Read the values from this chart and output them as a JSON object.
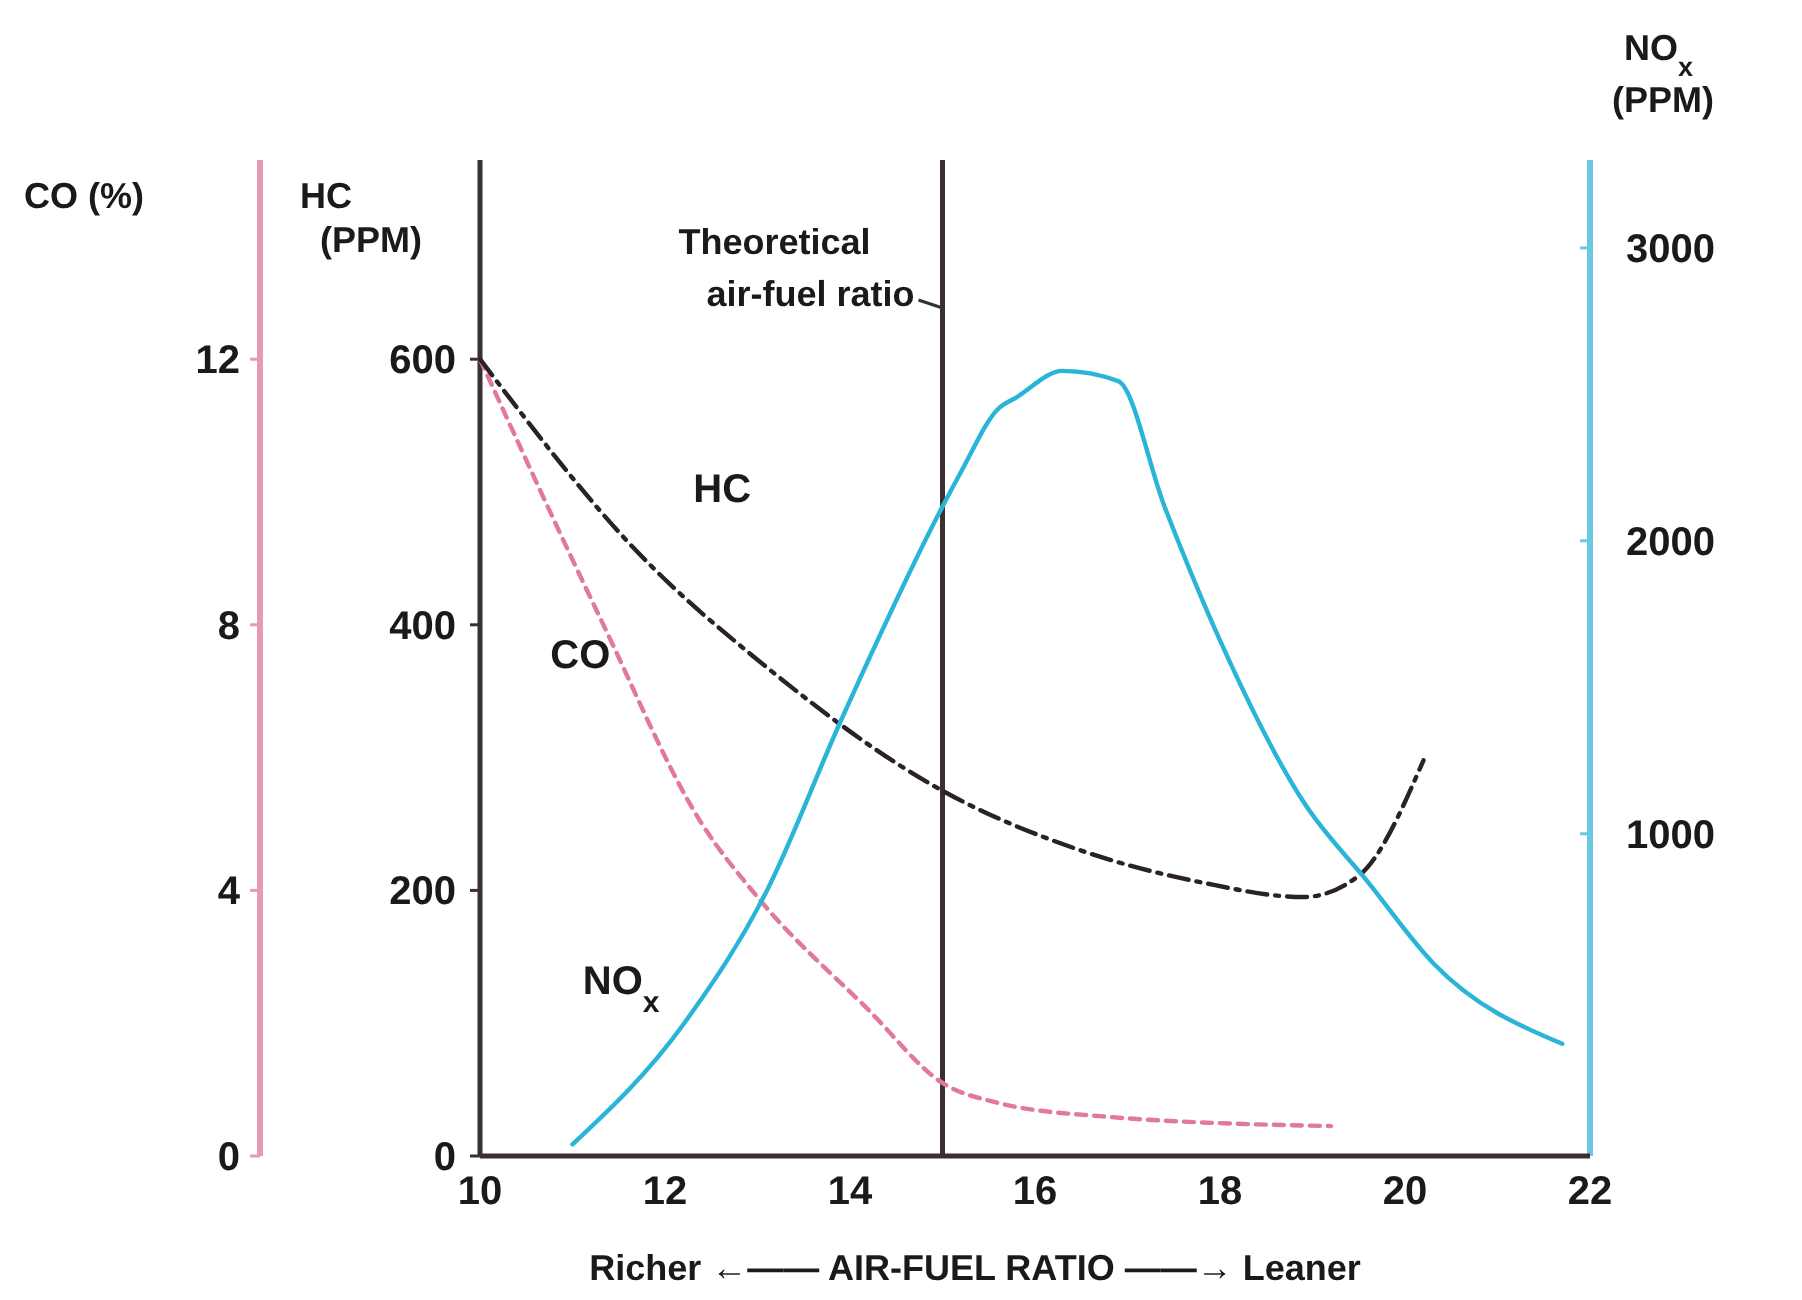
{
  "chart_data": {
    "type": "line",
    "xlabel": "Richer ←—— AIR-FUEL RATIO ——→ Leaner",
    "ylabel": "CO (%)",
    "y2label": "HC (PPM)",
    "y3label": "NO$_{x}$ (PPM)",
    "xlim": [
      10,
      22
    ],
    "xticks": [
      10,
      12,
      14,
      16,
      18,
      20,
      22
    ],
    "ylim": [
      0,
      15
    ],
    "yticks": [
      0,
      4,
      8,
      12
    ],
    "y2lim": [
      0,
      750
    ],
    "y2ticks": [
      0,
      200,
      400,
      600
    ],
    "y3lim": [
      -100,
      3300
    ],
    "y3ticks": [
      1000,
      2000,
      3000
    ],
    "grid": false,
    "ref_lines": [
      {
        "axis": "x",
        "value": 15,
        "label": "Theoretical air-fuel ratio",
        "color": "#3a3030"
      }
    ],
    "series": [
      {
        "name": "CO",
        "color": "#e07a96",
        "axis": "y",
        "line_style": "dashed",
        "x": [
          10,
          11.3,
          12.4,
          13,
          14.2,
          15,
          15.6,
          16.7,
          19.2
        ],
        "values": [
          12,
          8.1,
          5,
          3.9,
          2.2,
          1.1,
          0.8,
          0.6,
          0.45
        ]
      },
      {
        "name": "HC",
        "color": "#2a2224",
        "axis": "y2",
        "line_style": "dashdot",
        "x": [
          10,
          11.7,
          13.1,
          15,
          16.5,
          17.8,
          18.9,
          19.5,
          20.2
        ],
        "values": [
          600,
          455,
          368,
          275,
          230,
          206,
          195,
          211,
          298
        ]
      },
      {
        "name": "NO$_{x}$",
        "color": "#29b4d8",
        "axis": "y3",
        "line_style": "solid",
        "x": [
          11,
          12.2,
          13.1,
          13.9,
          15,
          15.2,
          15.6,
          15.8,
          16.3,
          16.9,
          17.4,
          18,
          18.9,
          19.6,
          20.3,
          21.7
        ],
        "values": [
          -60,
          350,
          805,
          1385,
          2117,
          2235,
          2450,
          2490,
          2580,
          2545,
          2117,
          1660,
          1110,
          835,
          560,
          283
        ]
      }
    ]
  }
}
